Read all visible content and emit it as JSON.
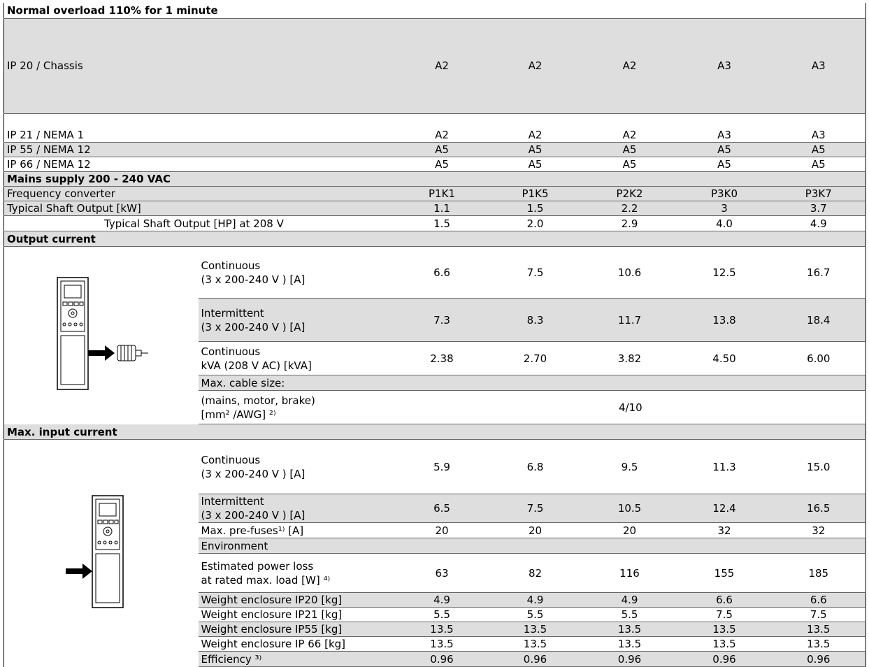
{
  "title": "Normal overload 110% for 1 minute",
  "enclosure_rows": [
    {
      "label": "IP 20 / Chassis",
      "values": [
        "A2",
        "A2",
        "A2",
        "A3",
        "A3"
      ]
    },
    {
      "label": "IP 21 / NEMA 1",
      "values": [
        "A2",
        "A2",
        "A2",
        "A3",
        "A3"
      ]
    },
    {
      "label": "IP 55 / NEMA 12",
      "values": [
        "A5",
        "A5",
        "A5",
        "A5",
        "A5"
      ]
    },
    {
      "label": "IP 66 / NEMA 12",
      "values": [
        "A5",
        "A5",
        "A5",
        "A5",
        "A5"
      ]
    }
  ],
  "mains_section": {
    "title": "Mains supply 200 - 240 VAC",
    "rows": [
      {
        "label": "Frequency converter",
        "values": [
          "P1K1",
          "P1K5",
          "P2K2",
          "P3K0",
          "P3K7"
        ]
      },
      {
        "label": "Typical Shaft Output [kW]",
        "values": [
          "1.1",
          "1.5",
          "2.2",
          "3",
          "3.7"
        ]
      },
      {
        "label": "Typical Shaft Output [HP] at 208 V",
        "values": [
          "1.5",
          "2.0",
          "2.9",
          "4.0",
          "4.9"
        ]
      }
    ]
  },
  "output_section": {
    "title": "Output current",
    "rows": [
      {
        "label": [
          "Continuous",
          "(3 x 200-240 V ) [A]"
        ],
        "values": [
          "6.6",
          "7.5",
          "10.6",
          "12.5",
          "16.7"
        ]
      },
      {
        "label": [
          "Intermittent",
          "(3 x 200-240 V ) [A]"
        ],
        "values": [
          "7.3",
          "8.3",
          "11.7",
          "13.8",
          "18.4"
        ]
      },
      {
        "label": [
          "Continuous",
          "kVA (208 V AC) [kVA]"
        ],
        "values": [
          "2.38",
          "2.70",
          "3.82",
          "4.50",
          "6.00"
        ]
      },
      {
        "label": [
          "Max. cable size:"
        ]
      },
      {
        "label": [
          "(mains, motor, brake)",
          "[mm² /AWG] ²⁾"
        ],
        "value": "4/10"
      }
    ]
  },
  "input_section": {
    "title": "Max. input current",
    "rows": [
      {
        "label": [
          "Continuous",
          "(3 x 200-240 V ) [A]"
        ],
        "values": [
          "5.9",
          "6.8",
          "9.5",
          "11.3",
          "15.0"
        ]
      },
      {
        "label": [
          "Intermittent",
          "(3 x 200-240 V ) [A]"
        ],
        "values": [
          "6.5",
          "7.5",
          "10.5",
          "12.4",
          "16.5"
        ]
      },
      {
        "label": [
          "Max. pre-fuses¹⁾ [A]"
        ],
        "values": [
          "20",
          "20",
          "20",
          "32",
          "32"
        ]
      },
      {
        "label": [
          "Environment"
        ]
      },
      {
        "label": [
          "Estimated power loss",
          "at rated max. load [W] ⁴⁾"
        ],
        "values": [
          "63",
          "82",
          "116",
          "155",
          "185"
        ]
      },
      {
        "label": [
          "Weight enclosure IP20 [kg]"
        ],
        "values": [
          "4.9",
          "4.9",
          "4.9",
          "6.6",
          "6.6"
        ]
      },
      {
        "label": [
          "Weight enclosure IP21 [kg]"
        ],
        "values": [
          "5.5",
          "5.5",
          "5.5",
          "7.5",
          "7.5"
        ]
      },
      {
        "label": [
          "Weight enclosure IP55 [kg]"
        ],
        "values": [
          "13.5",
          "13.5",
          "13.5",
          "13.5",
          "13.5"
        ]
      },
      {
        "label": [
          "Weight enclosure IP 66 [kg]"
        ],
        "values": [
          "13.5",
          "13.5",
          "13.5",
          "13.5",
          "13.5"
        ]
      },
      {
        "label": [
          "Efficiency ³⁾"
        ],
        "values": [
          "0.96",
          "0.96",
          "0.96",
          "0.96",
          "0.96"
        ]
      }
    ]
  }
}
